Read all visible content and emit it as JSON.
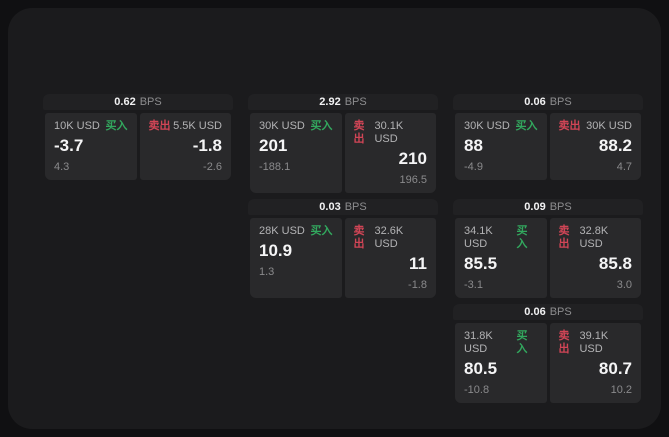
{
  "labels": {
    "bps_unit": "BPS",
    "buy": "买入",
    "sell": "卖出"
  },
  "colors": {
    "backdrop": "#101012",
    "surface": "#1b1b1d",
    "header": "#212123",
    "panel": "#29292b",
    "buy_green": "#32a85e",
    "sell_red": "#d14556"
  },
  "cards": [
    {
      "position": "r1c1",
      "bps": "0.62",
      "buy": {
        "size": "10K USD",
        "price": "-3.7",
        "delta": "4.3"
      },
      "sell": {
        "size": "5.5K USD",
        "price": "-1.8",
        "delta": "-2.6"
      }
    },
    {
      "position": "r1c2",
      "bps": "2.92",
      "buy": {
        "size": "30K USD",
        "price": "201",
        "delta": "-188.1"
      },
      "sell": {
        "size": "30.1K USD",
        "price": "210",
        "delta": "196.5"
      }
    },
    {
      "position": "r1c3",
      "bps": "0.06",
      "buy": {
        "size": "30K USD",
        "price": "88",
        "delta": "-4.9"
      },
      "sell": {
        "size": "30K USD",
        "price": "88.2",
        "delta": "4.7"
      }
    },
    {
      "position": "r2c2",
      "bps": "0.03",
      "buy": {
        "size": "28K USD",
        "price": "10.9",
        "delta": "1.3"
      },
      "sell": {
        "size": "32.6K USD",
        "price": "11",
        "delta": "-1.8"
      }
    },
    {
      "position": "r2c3",
      "bps": "0.09",
      "buy": {
        "size": "34.1K USD",
        "price": "85.5",
        "delta": "-3.1"
      },
      "sell": {
        "size": "32.8K USD",
        "price": "85.8",
        "delta": "3.0"
      }
    },
    {
      "position": "r3c3",
      "bps": "0.06",
      "buy": {
        "size": "31.8K USD",
        "price": "80.5",
        "delta": "-10.8"
      },
      "sell": {
        "size": "39.1K USD",
        "price": "80.7",
        "delta": "10.2"
      }
    }
  ]
}
